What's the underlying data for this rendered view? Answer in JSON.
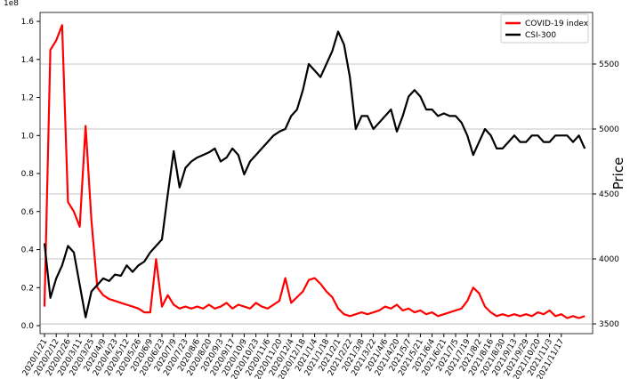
{
  "chart_data": {
    "type": "line",
    "y_offset_label": "1e8",
    "y2_label": "Price",
    "categories": [
      "2020/1/21",
      null,
      "2020/2/12",
      null,
      "2020/2/26",
      null,
      "2020/3/11",
      null,
      "2020/3/25",
      null,
      "2020/4/9",
      null,
      "2020/4/23",
      null,
      "2020/5/12",
      null,
      "2020/5/26",
      null,
      "2020/6/9",
      null,
      "2020/6/23",
      null,
      "2020/7/9",
      null,
      "2020/7/23",
      null,
      "2020/8/6",
      null,
      "2020/8/20",
      null,
      "2020/9/3",
      null,
      "2020/9/17",
      null,
      "2020/10/9",
      null,
      "2020/10/23",
      null,
      "2020/11/6",
      null,
      "2020/11/20",
      null,
      "2020/12/4",
      null,
      "2020/12/18",
      null,
      "2021/1/4",
      null,
      "2021/1/18",
      null,
      "2021/2/1",
      null,
      "2021/2/22",
      null,
      "2021/3/8",
      null,
      "2021/3/22",
      null,
      "2021/4/6",
      null,
      "2021/4/20",
      null,
      "2021/5/7",
      null,
      "2021/5/21",
      null,
      "2021/6/4",
      null,
      "2021/6/21",
      null,
      "2021/7/5",
      null,
      "2021/7/19",
      null,
      "2021/8/2",
      null,
      "2021/8/16",
      null,
      "2021/8/30",
      null,
      "2021/9/13",
      null,
      "2021/9/29",
      null,
      "2021/10/20",
      null,
      "2021/11/3",
      null,
      "2021/11/17",
      null,
      null,
      null,
      null
    ],
    "series": [
      {
        "name": "COVID-19 index",
        "color": "#ff0000",
        "values": [
          0.1,
          1.45,
          1.5,
          1.58,
          0.65,
          0.6,
          0.52,
          1.05,
          0.55,
          0.2,
          0.16,
          0.14,
          0.13,
          0.12,
          0.11,
          0.1,
          0.09,
          0.07,
          0.07,
          0.35,
          0.1,
          0.16,
          0.11,
          0.09,
          0.1,
          0.09,
          0.1,
          0.09,
          0.11,
          0.09,
          0.1,
          0.12,
          0.09,
          0.11,
          0.1,
          0.09,
          0.12,
          0.1,
          0.09,
          0.11,
          0.13,
          0.25,
          0.12,
          0.15,
          0.18,
          0.24,
          0.25,
          0.22,
          0.18,
          0.15,
          0.09,
          0.06,
          0.05,
          0.06,
          0.07,
          0.06,
          0.07,
          0.08,
          0.1,
          0.09,
          0.11,
          0.08,
          0.09,
          0.07,
          0.08,
          0.06,
          0.07,
          0.05,
          0.06,
          0.07,
          0.08,
          0.09,
          0.13,
          0.2,
          0.17,
          0.1,
          0.07,
          0.05,
          0.06,
          0.05,
          0.06,
          0.05,
          0.06,
          0.05,
          0.07,
          0.06,
          0.08,
          0.05,
          0.06,
          0.04,
          0.05,
          0.04,
          0.05
        ]
      },
      {
        "name": "CSI-300",
        "color": "#000000",
        "axis": "y2",
        "values": [
          4120,
          3700,
          3850,
          3950,
          4100,
          4050,
          3800,
          3550,
          3750,
          3800,
          3850,
          3830,
          3880,
          3870,
          3950,
          3900,
          3950,
          3980,
          4050,
          4100,
          4150,
          4500,
          4830,
          4550,
          4700,
          4750,
          4780,
          4800,
          4820,
          4850,
          4750,
          4780,
          4850,
          4800,
          4650,
          4750,
          4800,
          4850,
          4900,
          4950,
          4980,
          5000,
          5100,
          5150,
          5300,
          5500,
          5450,
          5400,
          5500,
          5600,
          5750,
          5650,
          5400,
          5000,
          5100,
          5100,
          5000,
          5050,
          5100,
          5150,
          4980,
          5100,
          5250,
          5300,
          5250,
          5150,
          5150,
          5100,
          5120,
          5100,
          5100,
          5050,
          4950,
          4800,
          4900,
          5000,
          4950,
          4850,
          4850,
          4900,
          4950,
          4900,
          4900,
          4950,
          4950,
          4900,
          4900,
          4950,
          4950,
          4950,
          4900,
          4950,
          4850
        ]
      }
    ],
    "ylim": [
      -0.042,
      1.647
    ],
    "yticks": [
      {
        "value": 0,
        "label": "0.0"
      },
      {
        "value": 0.2,
        "label": "0.2"
      },
      {
        "value": 0.4,
        "label": "0.4"
      },
      {
        "value": 0.6,
        "label": "0.6"
      },
      {
        "value": 0.8,
        "label": "0.8"
      },
      {
        "value": 1.0,
        "label": "1.0"
      },
      {
        "value": 1.2,
        "label": "1.2"
      },
      {
        "value": 1.4,
        "label": "1.4"
      },
      {
        "value": 1.6,
        "label": "1.6"
      }
    ],
    "y2lim": [
      3425,
      5897
    ],
    "y2ticks": [
      3500,
      4000,
      4500,
      5000,
      5500
    ],
    "grid": true,
    "legend": "upper right"
  }
}
